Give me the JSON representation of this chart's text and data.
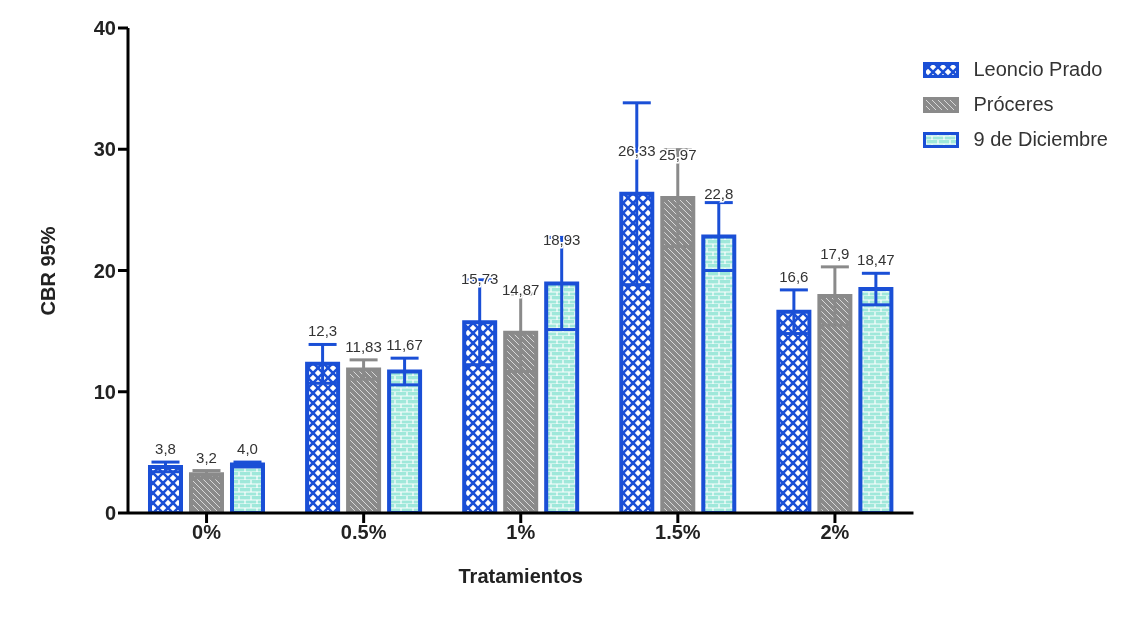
{
  "chart_data": {
    "type": "bar",
    "xlabel": "Tratamientos",
    "ylabel": "CBR 95%",
    "categories": [
      "0%",
      "0.5%",
      "1%",
      "1.5%",
      "2%"
    ],
    "series": [
      {
        "name": "Leoncio Prado",
        "color": "#1a4fd6",
        "values": [
          3.8,
          12.3,
          15.73,
          26.33,
          16.6
        ],
        "errors": [
          0.4,
          1.6,
          3.5,
          7.5,
          1.8
        ],
        "value_labels": [
          "3,8",
          "12,3",
          "15,73",
          "26,33",
          "16,6"
        ]
      },
      {
        "name": "Próceres",
        "color": "#8a8a8a",
        "values": [
          3.2,
          11.83,
          14.87,
          25.97,
          17.9
        ],
        "errors": [
          0.3,
          0.8,
          3.2,
          4.0,
          2.4
        ],
        "value_labels": [
          "3,2",
          "11,83",
          "14,87",
          "25,97",
          "17,9"
        ]
      },
      {
        "name": "9 de Diciembre",
        "color": "#1a4fd6",
        "values": [
          4.0,
          11.67,
          18.93,
          22.8,
          18.47
        ],
        "errors": [
          0.2,
          1.1,
          3.8,
          2.8,
          1.3
        ],
        "value_labels": [
          "4,0",
          "11,67",
          "18,93",
          "22,8",
          "18,47"
        ]
      }
    ],
    "ylim": [
      0,
      40
    ],
    "yticks": [
      0,
      10,
      20,
      30,
      40
    ],
    "grid": false,
    "legend": "right"
  }
}
